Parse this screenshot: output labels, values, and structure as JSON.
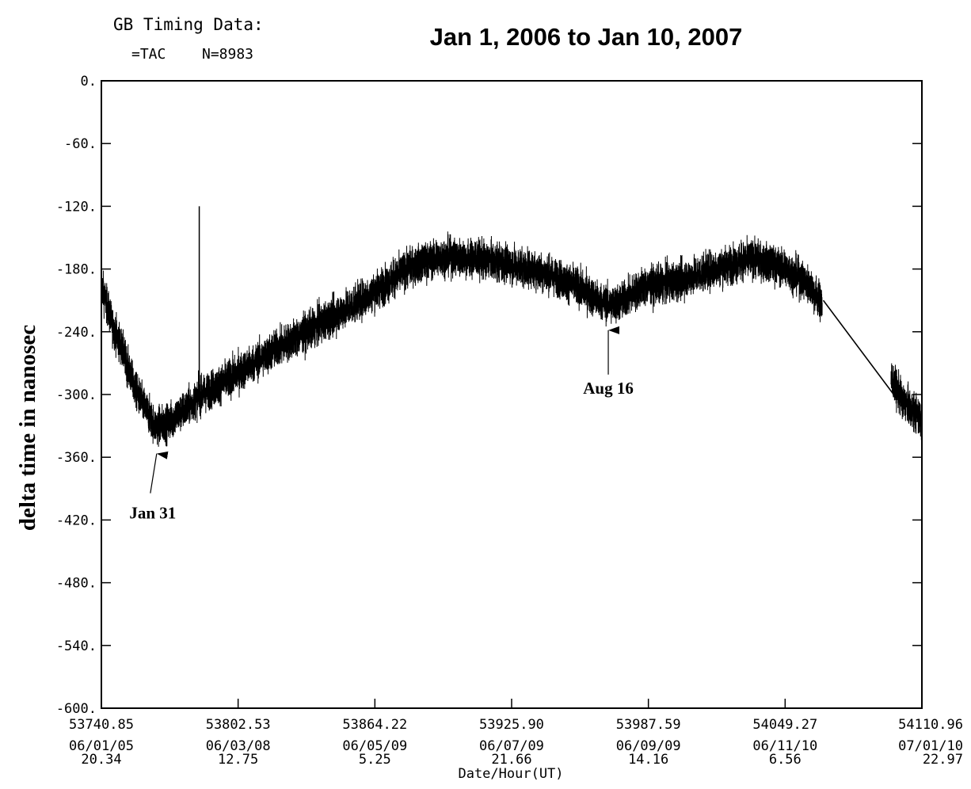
{
  "header": {
    "source_title": "GB Timing Data:",
    "station": "=TAC",
    "count": "N=8983",
    "main_title": "Jan 1, 2006 to Jan 10, 2007"
  },
  "chart_data": {
    "type": "line",
    "title": "Jan 1, 2006 to Jan 10, 2007",
    "xlabel": "Date/Hour(UT)",
    "ylabel": "delta time in nanosec",
    "xlim": [
      53740.85,
      54110.96
    ],
    "ylim": [
      -600,
      0
    ],
    "grid": false,
    "y_ticks": [
      0,
      -60,
      -120,
      -180,
      -240,
      -300,
      -360,
      -420,
      -480,
      -540,
      -600
    ],
    "y_tick_labels": [
      "0.",
      "-60.",
      "-120.",
      "-180.",
      "-240.",
      "-300.",
      "-360.",
      "-420.",
      "-480.",
      "-540.",
      "-600."
    ],
    "x_ticks": [
      {
        "mjd": 53740.85,
        "label": "53740.85",
        "date": "06/01/05",
        "hour": "20.34"
      },
      {
        "mjd": 53802.53,
        "label": "53802.53",
        "date": "06/03/08",
        "hour": "12.75"
      },
      {
        "mjd": 53864.22,
        "label": "53864.22",
        "date": "06/05/09",
        "hour": "5.25"
      },
      {
        "mjd": 53925.9,
        "label": "53925.90",
        "date": "06/07/09",
        "hour": "21.66"
      },
      {
        "mjd": 53987.59,
        "label": "53987.59",
        "date": "06/09/09",
        "hour": "14.16"
      },
      {
        "mjd": 54049.27,
        "label": "54049.27",
        "date": "06/11/10",
        "hour": "6.56"
      },
      {
        "mjd": 54110.96,
        "label": "54110.96",
        "date": "07/01/10",
        "hour": "22.97"
      }
    ],
    "series": [
      {
        "color": "#000000",
        "noise_amplitude_ns": 16,
        "trend_points": [
          {
            "x": 53740.85,
            "y": -195
          },
          {
            "x": 53746,
            "y": -235
          },
          {
            "x": 53750,
            "y": -255
          },
          {
            "x": 53756,
            "y": -295
          },
          {
            "x": 53765,
            "y": -330
          },
          {
            "x": 53770,
            "y": -328
          },
          {
            "x": 53780,
            "y": -312
          },
          {
            "x": 53785,
            "y": -302
          },
          {
            "x": 53800,
            "y": -283
          },
          {
            "x": 53820,
            "y": -256
          },
          {
            "x": 53840,
            "y": -232
          },
          {
            "x": 53860,
            "y": -207
          },
          {
            "x": 53870,
            "y": -193
          },
          {
            "x": 53880,
            "y": -178
          },
          {
            "x": 53895,
            "y": -168
          },
          {
            "x": 53910,
            "y": -170
          },
          {
            "x": 53925,
            "y": -175
          },
          {
            "x": 53940,
            "y": -183
          },
          {
            "x": 53955,
            "y": -196
          },
          {
            "x": 53965,
            "y": -210
          },
          {
            "x": 53970,
            "y": -214
          },
          {
            "x": 53975,
            "y": -212
          },
          {
            "x": 53985,
            "y": -197
          },
          {
            "x": 54000,
            "y": -192
          },
          {
            "x": 54020,
            "y": -178
          },
          {
            "x": 54035,
            "y": -170
          },
          {
            "x": 54050,
            "y": -180
          },
          {
            "x": 54060,
            "y": -195
          },
          {
            "x": 54066,
            "y": -213
          }
        ],
        "linear_segment": [
          {
            "x": 54066.5,
            "y": -210
          },
          {
            "x": 54100,
            "y": -305
          }
        ],
        "end_segment": [
          {
            "x": 54097,
            "y": -285
          },
          {
            "x": 54103,
            "y": -308
          },
          {
            "x": 54110.96,
            "y": -323
          }
        ],
        "spike": {
          "x": 53785,
          "y_from": -300,
          "y_to": -120
        }
      }
    ],
    "annotations": [
      {
        "label": "Jan 31",
        "x": 53765.8,
        "y": -355
      },
      {
        "label": "Aug 16",
        "x": 53969.5,
        "y": -237
      }
    ]
  }
}
